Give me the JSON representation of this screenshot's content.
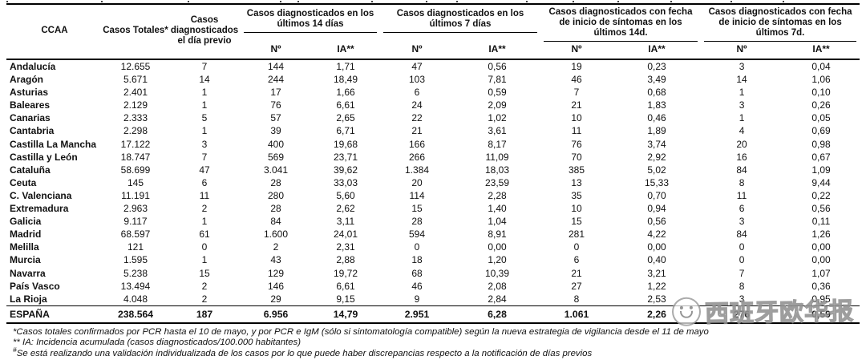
{
  "table": {
    "header": {
      "ccaa": "CCAA",
      "totales": "Casos Totales*",
      "previo": "Casos diagnosticados el día previo",
      "groups": [
        {
          "label": "Casos diagnosticados en los últimos 14 días"
        },
        {
          "label": "Casos diagnosticados en los últimos 7 días"
        },
        {
          "label": "Casos diagnosticados con fecha de inicio de síntomas en los últimos 14d."
        },
        {
          "label": "Casos diagnosticados con fecha de inicio de síntomas en los últimos 7d."
        }
      ],
      "sub_no": "Nº",
      "sub_ia": "IA**"
    },
    "rows": [
      [
        "Andalucía",
        "12.655",
        "7",
        "144",
        "1,71",
        "47",
        "0,56",
        "19",
        "0,23",
        "3",
        "0,04"
      ],
      [
        "Aragón",
        "5.671",
        "14",
        "244",
        "18,49",
        "103",
        "7,81",
        "46",
        "3,49",
        "14",
        "1,06"
      ],
      [
        "Asturias",
        "2.401",
        "1",
        "17",
        "1,66",
        "6",
        "0,59",
        "7",
        "0,68",
        "1",
        "0,10"
      ],
      [
        "Baleares",
        "2.129",
        "1",
        "76",
        "6,61",
        "24",
        "2,09",
        "21",
        "1,83",
        "3",
        "0,26"
      ],
      [
        "Canarias",
        "2.333",
        "5",
        "57",
        "2,65",
        "22",
        "1,02",
        "10",
        "0,46",
        "1",
        "0,05"
      ],
      [
        "Cantabria",
        "2.298",
        "1",
        "39",
        "6,71",
        "21",
        "3,61",
        "11",
        "1,89",
        "4",
        "0,69"
      ],
      [
        "Castilla La Mancha",
        "17.122",
        "3",
        "400",
        "19,68",
        "166",
        "8,17",
        "76",
        "3,74",
        "20",
        "0,98"
      ],
      [
        "Castilla y León",
        "18.747",
        "7",
        "569",
        "23,71",
        "266",
        "11,09",
        "70",
        "2,92",
        "16",
        "0,67"
      ],
      [
        "Cataluña",
        "58.699",
        "47",
        "3.041",
        "39,62",
        "1.384",
        "18,03",
        "385",
        "5,02",
        "84",
        "1,09"
      ],
      [
        "Ceuta",
        "145",
        "6",
        "28",
        "33,03",
        "20",
        "23,59",
        "13",
        "15,33",
        "8",
        "9,44"
      ],
      [
        "C. Valenciana",
        "11.191",
        "11",
        "280",
        "5,60",
        "114",
        "2,28",
        "35",
        "0,70",
        "11",
        "0,22"
      ],
      [
        "Extremadura",
        "2.963",
        "2",
        "28",
        "2,62",
        "15",
        "1,40",
        "10",
        "0,94",
        "6",
        "0,56"
      ],
      [
        "Galicia",
        "9.117",
        "1",
        "84",
        "3,11",
        "28",
        "1,04",
        "15",
        "0,56",
        "3",
        "0,11"
      ],
      [
        "Madrid",
        "68.597",
        "61",
        "1.600",
        "24,01",
        "594",
        "8,91",
        "281",
        "4,22",
        "84",
        "1,26"
      ],
      [
        "Melilla",
        "121",
        "0",
        "2",
        "2,31",
        "0",
        "0,00",
        "0",
        "0,00",
        "0",
        "0,00"
      ],
      [
        "Murcia",
        "1.595",
        "1",
        "43",
        "2,88",
        "18",
        "1,20",
        "6",
        "0,40",
        "0",
        "0,00"
      ],
      [
        "Navarra",
        "5.238",
        "15",
        "129",
        "19,72",
        "68",
        "10,39",
        "21",
        "3,21",
        "7",
        "1,07"
      ],
      [
        "País Vasco",
        "13.494",
        "2",
        "146",
        "6,61",
        "46",
        "2,08",
        "27",
        "1,22",
        "8",
        "0,36"
      ],
      [
        "La Rioja",
        "4.048",
        "2",
        "29",
        "9,15",
        "9",
        "2,84",
        "8",
        "2,53",
        "3",
        "0,95"
      ]
    ],
    "total_row": [
      "ESPAÑA",
      "238.564",
      "187",
      "6.956",
      "14,79",
      "2.951",
      "6,28",
      "1.061",
      "2,26",
      "276",
      "0,59"
    ]
  },
  "footnotes": {
    "fn1": "*Casos totales confirmados por PCR hasta el 10 de mayo, y por PCR e IgM (sólo si sintomatología compatible) según la nueva estrategia de vigilancia desde el 11 de mayo",
    "fn2": "** IA: Incidencia acumulada (casos diagnosticados/100.000 habitantes)",
    "fn3_sup": "#",
    "fn3": "Se está realizando una validación individualizada de los casos por lo que puede haber discrepancias respecto a la notificación de días previos"
  },
  "watermark": {
    "text": "西班牙欧华报"
  }
}
